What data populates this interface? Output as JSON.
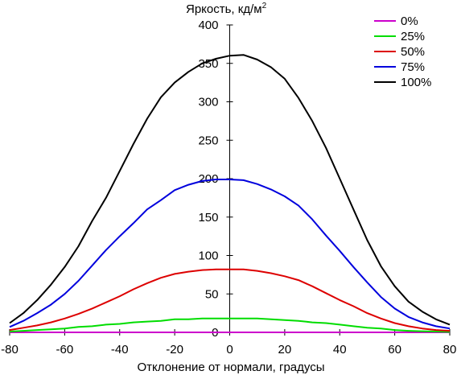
{
  "chart_data": {
    "type": "line",
    "title": "",
    "ylabel_main": "Яркость, кд/м",
    "ylabel_sup": "2",
    "xlabel": "Отклонение от нормали, градусы",
    "xlim": [
      -80,
      80
    ],
    "ylim": [
      0,
      400
    ],
    "xticks": [
      "-80",
      "-60",
      "-40",
      "-20",
      "0",
      "20",
      "40",
      "60",
      "80"
    ],
    "yticks": [
      "0",
      "50",
      "100",
      "150",
      "200",
      "250",
      "300",
      "350",
      "400"
    ],
    "grid": false,
    "legend_position": "top-right",
    "x": [
      -80,
      -75,
      -70,
      -65,
      -60,
      -55,
      -50,
      -45,
      -40,
      -35,
      -30,
      -25,
      -20,
      -15,
      -10,
      -5,
      0,
      5,
      10,
      15,
      20,
      25,
      30,
      35,
      40,
      45,
      50,
      55,
      60,
      65,
      70,
      75,
      80
    ],
    "series": [
      {
        "name": "0%",
        "color": "#cc00cc",
        "values": [
          0,
          0,
          0,
          0,
          0,
          0,
          0,
          0,
          0,
          0,
          0,
          0,
          0,
          0,
          0,
          0,
          0,
          0,
          0,
          0,
          0,
          0,
          0,
          0,
          0,
          0,
          0,
          0,
          0,
          0,
          0,
          0,
          0
        ]
      },
      {
        "name": "25%",
        "color": "#00dd00",
        "values": [
          1,
          2,
          3,
          4,
          5,
          7,
          8,
          10,
          11,
          13,
          14,
          15,
          17,
          17,
          18,
          18,
          18,
          18,
          18,
          17,
          16,
          15,
          13,
          12,
          10,
          8,
          6,
          5,
          3,
          2,
          1.5,
          1,
          0.5
        ]
      },
      {
        "name": "50%",
        "color": "#dd0000",
        "values": [
          3,
          6,
          9,
          13,
          18,
          24,
          31,
          39,
          47,
          56,
          64,
          71,
          76,
          79,
          81,
          82,
          82,
          82,
          80,
          77,
          73,
          68,
          60,
          51,
          42,
          34,
          25,
          18,
          12,
          8,
          5,
          3,
          2
        ]
      },
      {
        "name": "75%",
        "color": "#0000dd",
        "values": [
          7,
          15,
          25,
          36,
          50,
          67,
          87,
          107,
          125,
          142,
          160,
          172,
          185,
          192,
          197,
          199,
          199,
          198,
          193,
          186,
          177,
          165,
          147,
          126,
          106,
          85,
          65,
          46,
          31,
          20,
          13,
          8,
          5
        ]
      },
      {
        "name": "100%",
        "color": "#000000",
        "values": [
          12,
          25,
          42,
          62,
          85,
          112,
          145,
          175,
          210,
          245,
          278,
          306,
          325,
          339,
          350,
          356,
          360,
          361,
          355,
          345,
          330,
          305,
          275,
          240,
          200,
          160,
          120,
          86,
          60,
          40,
          27,
          17,
          10
        ]
      }
    ]
  }
}
